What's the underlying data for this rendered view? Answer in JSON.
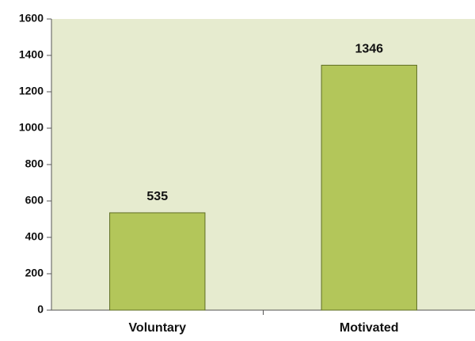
{
  "chart_data": {
    "type": "bar",
    "categories": [
      "Voluntary",
      "Motivated"
    ],
    "values": [
      535,
      1346
    ],
    "color": "#b3c65a",
    "background": "#e6ebcf",
    "ylim": [
      0,
      1600
    ],
    "yticks": [
      0,
      200,
      400,
      600,
      800,
      1000,
      1200,
      1400,
      1600
    ],
    "grid": false
  }
}
